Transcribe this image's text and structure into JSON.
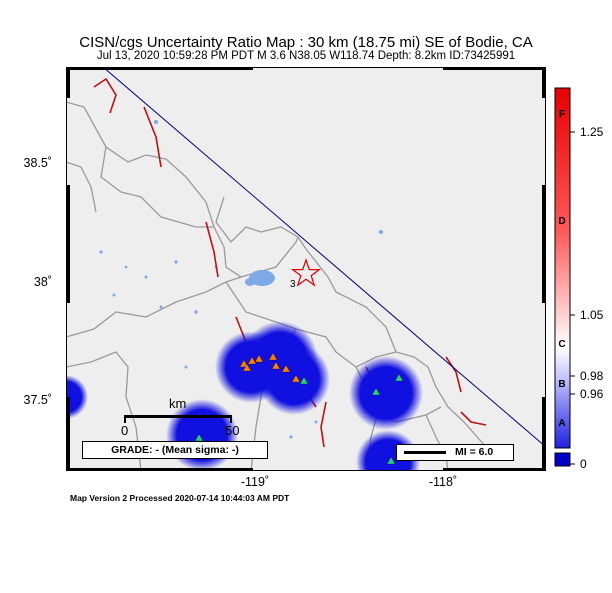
{
  "header": {
    "title": "CISN/cgs Uncertainty Ratio Map : 30 km (18.75 mi) SE of Bodie, CA",
    "subtitle": "Jul 13, 2020 10:59:28 PM PDT   M 3.6   N38.05 W118.74   Depth: 8.2km   ID:73425991"
  },
  "map": {
    "y_ticks": [
      "38.5˚",
      "38˚",
      "37.5˚"
    ],
    "x_ticks": [
      "-119˚",
      "-118˚"
    ],
    "scale_bar": {
      "unit": "km",
      "start": "0",
      "end": "50"
    },
    "grade_label": "GRADE: - (Mean sigma: -)",
    "mi_legend": "MI = 6.0",
    "colors": {
      "land": "#eeeeee",
      "boundary": "#9a9a9a",
      "fault": "#c01010",
      "water": "#7fa8e6",
      "uncertainty_blue": "#1010e0",
      "diagonal_line": "#000080",
      "epicenter_star": "#dd0000"
    },
    "stations": {
      "orange_count": 8,
      "green_count": 5
    }
  },
  "colorbar": {
    "labels": [
      "1.25",
      "1.05",
      "0.98",
      "0.96",
      "0"
    ],
    "letters": [
      "F",
      "D",
      "C",
      "B",
      "A"
    ]
  },
  "footer": {
    "text": "Map Version 2 Processed 2020-07-14 10:44:03 AM PDT"
  }
}
